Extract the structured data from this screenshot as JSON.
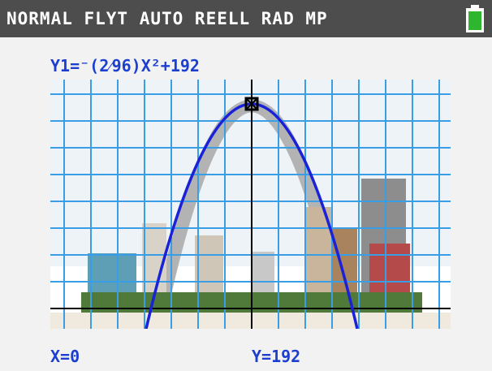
{
  "status_bar": {
    "text": "NORMAL FLYT AUTO REELL RAD MP"
  },
  "equation": "Y1=⁻(2⁄96)X²+192",
  "trace": {
    "x": "X=0",
    "y": "Y=192"
  }
}
